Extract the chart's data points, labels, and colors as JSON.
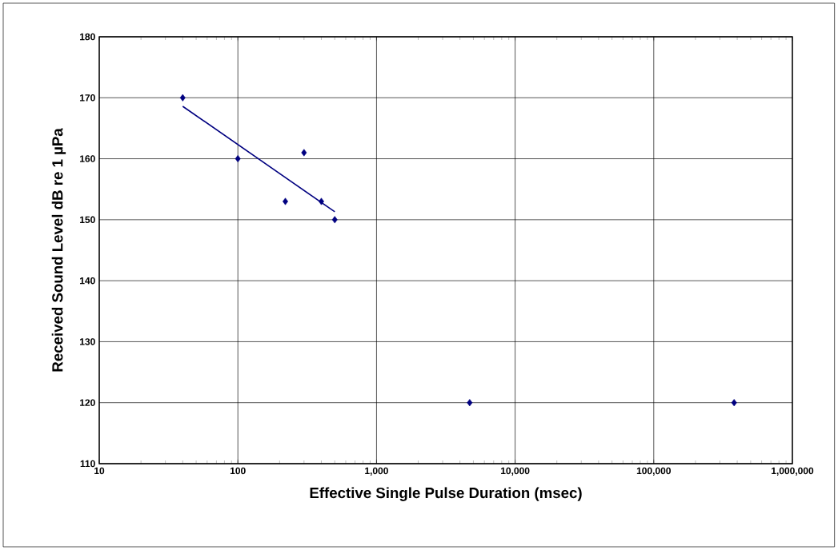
{
  "chart_data": {
    "type": "scatter",
    "xlabel": "Effective Single Pulse Duration (msec)",
    "ylabel": "Received Sound Level dB re 1 µPa",
    "log": "x",
    "xlim": [
      10,
      1000000
    ],
    "ylim": [
      110,
      180
    ],
    "xticks": [
      10,
      100,
      {
        "value": 1000,
        "label": "1,000"
      },
      {
        "value": 10000,
        "label": "10,000"
      },
      {
        "value": 100000,
        "label": "100,000"
      },
      {
        "value": 1000000,
        "label": "1,000,000"
      }
    ],
    "yticks": [
      110,
      120,
      130,
      140,
      150,
      160,
      170,
      180
    ],
    "grid": true,
    "series": [
      {
        "color": "#000080",
        "marker": "diamond",
        "x": [
          40,
          100,
          220,
          300,
          400,
          500,
          4700,
          380000
        ],
        "values": [
          170,
          160,
          153,
          161,
          153,
          150,
          120,
          120
        ]
      },
      {
        "type": "line",
        "color": "#000080",
        "marker": "none",
        "line_style": "solid",
        "x": [
          40,
          500
        ],
        "values": [
          168.6,
          151.3
        ]
      }
    ]
  }
}
